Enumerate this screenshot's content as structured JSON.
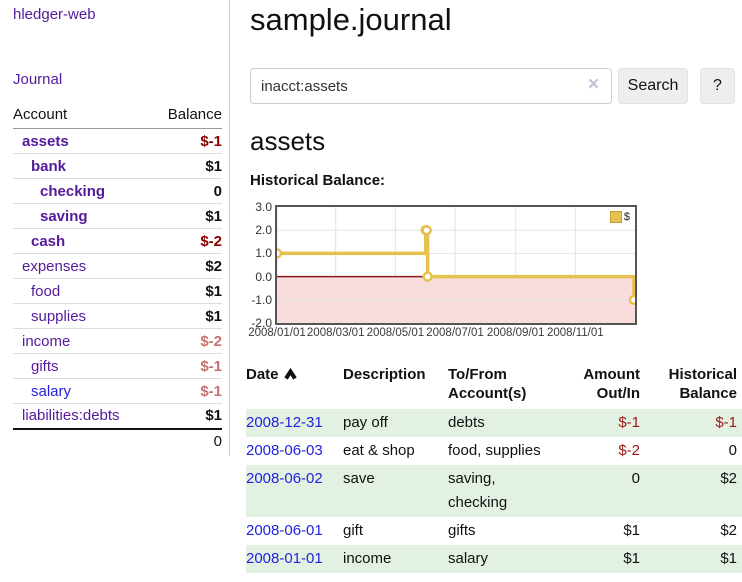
{
  "brand": "hledger-web",
  "nav": {
    "journal_label": "Journal"
  },
  "sidebar": {
    "header": {
      "account": "Account",
      "balance": "Balance"
    },
    "accounts": [
      {
        "name": "assets",
        "balance": "$-1"
      },
      {
        "name": "bank",
        "balance": "$1"
      },
      {
        "name": "checking",
        "balance": "0"
      },
      {
        "name": "saving",
        "balance": "$1"
      },
      {
        "name": "cash",
        "balance": "$-2"
      },
      {
        "name": "expenses",
        "balance": "$2"
      },
      {
        "name": "food",
        "balance": "$1"
      },
      {
        "name": "supplies",
        "balance": "$1"
      },
      {
        "name": "income",
        "balance": "$-2"
      },
      {
        "name": "gifts",
        "balance": "$-1"
      },
      {
        "name": "salary",
        "balance": "$-1"
      },
      {
        "name": "liabilities:debts",
        "balance": "$1"
      }
    ],
    "total": "0"
  },
  "main": {
    "title": "sample.journal",
    "search": {
      "value": "inacct:assets",
      "clear_icon": "×",
      "button_label": "Search",
      "help_label": "?"
    },
    "account_heading": "assets",
    "chart_label": "Historical Balance:"
  },
  "chart_data": {
    "type": "line",
    "step": true,
    "title": "Historical Balance",
    "series": [
      {
        "name": "$",
        "points": [
          [
            "2008-01-01",
            1
          ],
          [
            "2008-06-01",
            2
          ],
          [
            "2008-06-02",
            2
          ],
          [
            "2008-06-03",
            0
          ],
          [
            "2008-12-31",
            -1
          ]
        ]
      }
    ],
    "x_range": [
      "2008-01-01",
      "2009-01-01"
    ],
    "ylim": [
      -2,
      3
    ],
    "x_ticks": [
      "2008/01/01",
      "2008/03/01",
      "2008/05/01",
      "2008/07/01",
      "2008/09/01",
      "2008/11/01"
    ],
    "x_tick_dates": [
      "2008-01-01",
      "2008-03-01",
      "2008-05-01",
      "2008-07-01",
      "2008-09-01",
      "2008-11-01"
    ],
    "y_ticks": [
      "3.0",
      "2.0",
      "1.0",
      "0.0",
      "-1.0",
      "-2.0"
    ],
    "y_tick_values": [
      3,
      2,
      1,
      0,
      -1,
      -2
    ],
    "legend": {
      "label": "$",
      "color": "#e7c14d"
    },
    "line_color": "#e7c14d",
    "negative_region_color": "#f9dcdc",
    "zero_line_color": "#8b1a1a",
    "grid_color": "#e2e2e2",
    "legend_position": "top-right"
  },
  "table": {
    "headers": {
      "date": "Date",
      "description": "Description",
      "accounts": "To/From\nAccount(s)",
      "amount": "Amount\nOut/In",
      "historical": "Historical\nBalance"
    },
    "rows": [
      {
        "date": "2008-12-31",
        "description": "pay off",
        "accounts": "debts",
        "amount": "$-1",
        "historical": "$-1"
      },
      {
        "date": "2008-06-03",
        "description": "eat & shop",
        "accounts": "food, supplies",
        "amount": "$-2",
        "historical": "0"
      },
      {
        "date": "2008-06-02",
        "description": "save",
        "accounts": "saving,\nchecking",
        "amount": "0",
        "historical": "$2"
      },
      {
        "date": "2008-06-01",
        "description": "gift",
        "accounts": "gifts",
        "amount": "$1",
        "historical": "$2"
      },
      {
        "date": "2008-01-01",
        "description": "income",
        "accounts": "salary",
        "amount": "$1",
        "historical": "$1"
      }
    ]
  }
}
